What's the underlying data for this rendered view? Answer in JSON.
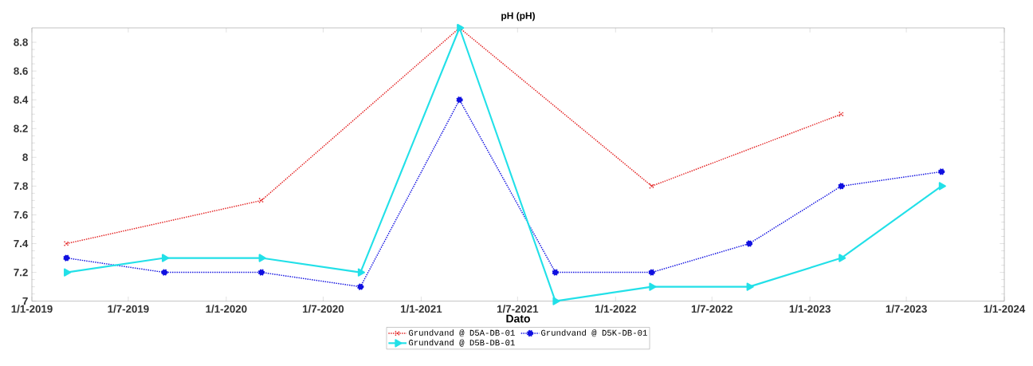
{
  "chart_data": {
    "type": "line",
    "title": "pH (pH)",
    "xlabel": "Dato",
    "xlim": [
      "2019-01-01",
      "2024-01-01"
    ],
    "xticks": [
      {
        "value": "2019-01-01",
        "label": "1/1-2019"
      },
      {
        "value": "2019-07-01",
        "label": "1/7-2019"
      },
      {
        "value": "2020-01-01",
        "label": "1/1-2020"
      },
      {
        "value": "2020-07-01",
        "label": "1/7-2020"
      },
      {
        "value": "2021-01-01",
        "label": "1/1-2021"
      },
      {
        "value": "2021-07-01",
        "label": "1/7-2021"
      },
      {
        "value": "2022-01-01",
        "label": "1/1-2022"
      },
      {
        "value": "2022-07-01",
        "label": "1/7-2022"
      },
      {
        "value": "2023-01-01",
        "label": "1/1-2023"
      },
      {
        "value": "2023-07-01",
        "label": "1/7-2023"
      },
      {
        "value": "2024-01-01",
        "label": "1/1-2024"
      }
    ],
    "ylim": [
      7,
      8.9
    ],
    "yticks": [
      7,
      7.2,
      7.4,
      7.6,
      7.8,
      8,
      8.2,
      8.4,
      8.6,
      8.8
    ],
    "grid": false,
    "legend": "bottom",
    "x": [
      "2019-03-07",
      "2019-09-07",
      "2020-03-07",
      "2020-09-09",
      "2021-03-14",
      "2021-09-10",
      "2022-03-10",
      "2022-09-09",
      "2023-03-01",
      "2023-09-05"
    ],
    "series": [
      {
        "name": "Grundvand @ D5A-DB-01",
        "color": "#e32222",
        "marker": "cross",
        "line_style": "dotted",
        "x": [
          "2019-03-07",
          "2020-03-07",
          "2021-03-14",
          "2022-03-10",
          "2023-03-01"
        ],
        "values": [
          7.4,
          7.7,
          8.9,
          7.8,
          8.3
        ]
      },
      {
        "name": "Grundvand @ D5K-DB-01",
        "color": "#1010e0",
        "marker": "circle",
        "line_style": "dotted",
        "values": [
          7.3,
          7.2,
          7.2,
          7.1,
          8.4,
          7.2,
          7.2,
          7.4,
          7.8,
          7.9
        ]
      },
      {
        "name": "Grundvand @ D5B-DB-01",
        "color": "#22e0e8",
        "marker": "triangle",
        "line_style": "solid",
        "values": [
          7.2,
          7.3,
          7.3,
          7.2,
          8.9,
          7.0,
          7.1,
          7.1,
          7.3,
          7.8
        ]
      }
    ]
  }
}
